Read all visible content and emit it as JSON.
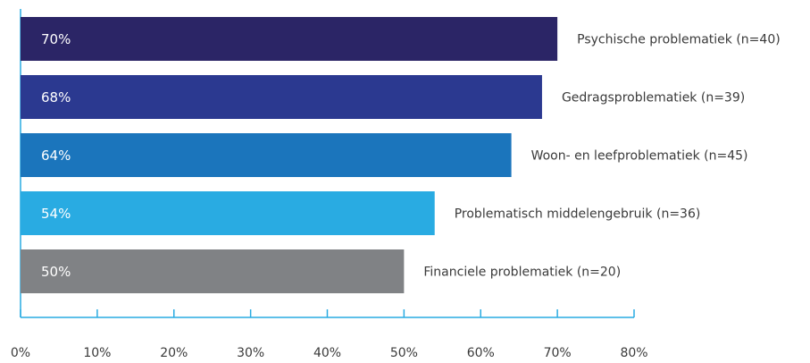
{
  "chart_data": {
    "type": "hbar",
    "categories": [
      "Psychische problematiek (n=40)",
      "Gedragsproblematiek (n=39)",
      "Woon- en leefproblematiek (n=45)",
      "Problematisch middelengebruik (n=36)",
      "Financiele problematiek (n=20)"
    ],
    "values": [
      70,
      68,
      64,
      54,
      50
    ],
    "value_labels": [
      "70%",
      "68%",
      "64%",
      "54%",
      "50%"
    ],
    "colors": [
      "#2b2566",
      "#2b3990",
      "#1b75bc",
      "#29abe2",
      "#808285"
    ],
    "xlim": [
      0,
      80
    ],
    "xticks": [
      {
        "value": 0,
        "label": "0%"
      },
      {
        "value": 10,
        "label": "10%"
      },
      {
        "value": 20,
        "label": "20%"
      },
      {
        "value": 30,
        "label": "30%"
      },
      {
        "value": 40,
        "label": "40%"
      },
      {
        "value": 50,
        "label": "50%"
      },
      {
        "value": 60,
        "label": "60%"
      },
      {
        "value": 70,
        "label": "70%"
      },
      {
        "value": 80,
        "label": "80%"
      }
    ],
    "axis_color": "#29abe2"
  }
}
